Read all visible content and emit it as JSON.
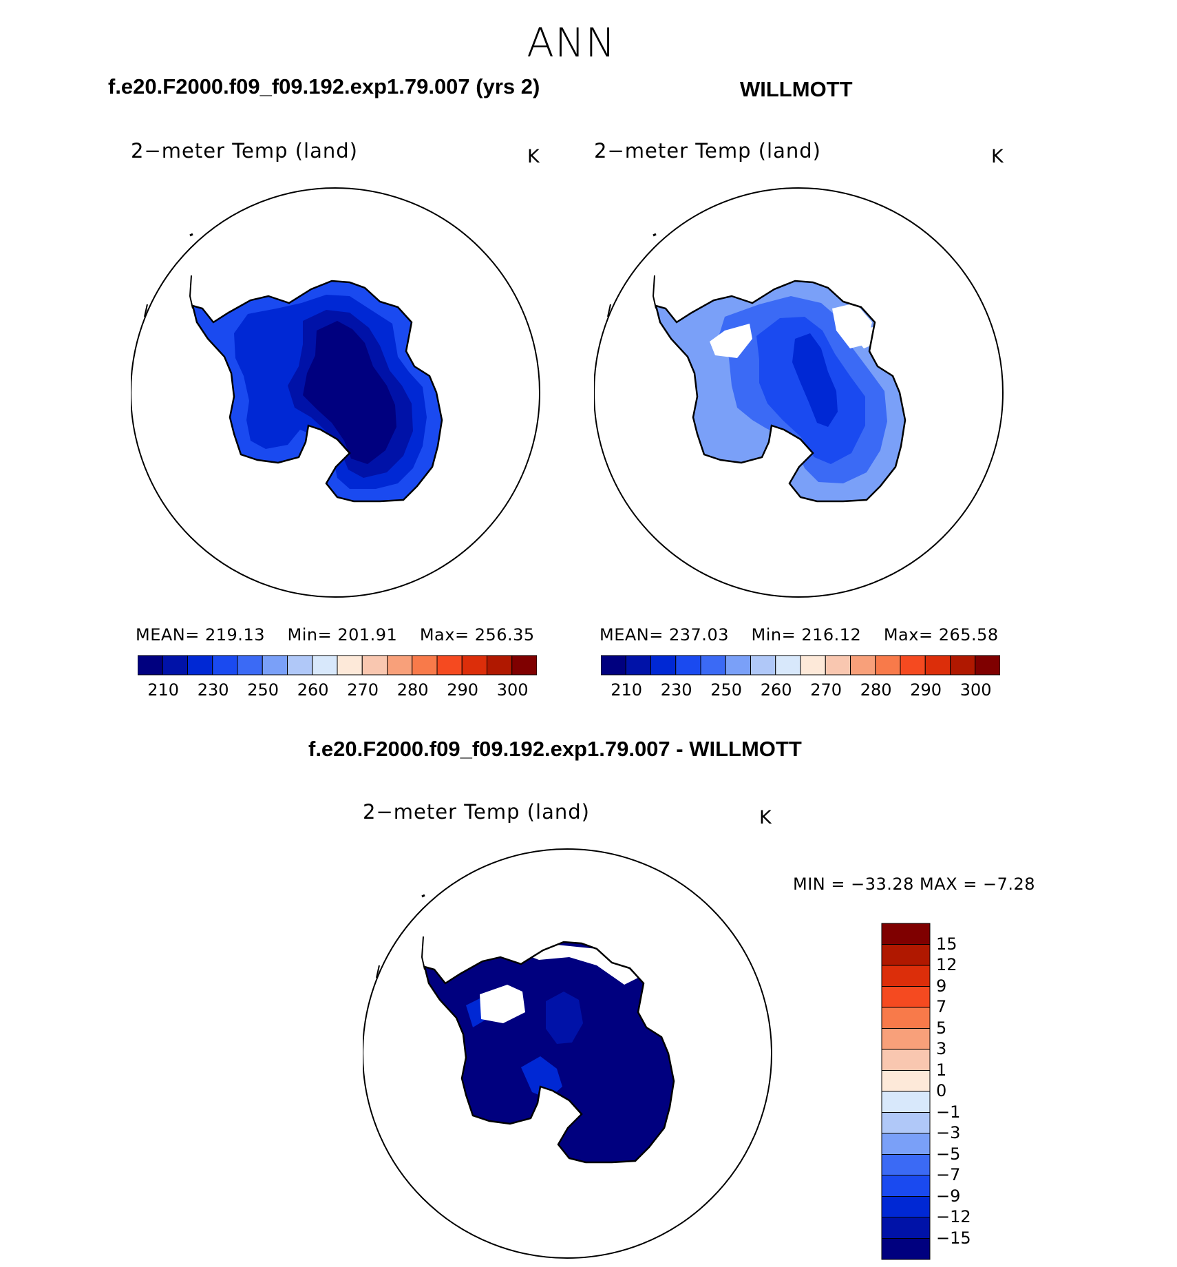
{
  "page": {
    "season": "ANN",
    "top_left_title": "f.e20.F2000.f09_f09.192.exp1.79.007 (yrs 2)",
    "top_right_title": "WILLMOTT",
    "diff_title": "f.e20.F2000.f09_f09.192.exp1.79.007 - WILLMOTT"
  },
  "panels": {
    "model": {
      "variable": "2−meter Temp (land)",
      "units": "K",
      "mean_label": "MEAN=",
      "mean": "219.13",
      "min_label": "Min=",
      "min": "201.91",
      "max_label": "Max=",
      "max": "256.35"
    },
    "obs": {
      "variable": "2−meter Temp (land)",
      "units": "K",
      "mean_label": "MEAN=",
      "mean": "237.03",
      "min_label": "Min=",
      "min": "216.12",
      "max_label": "Max=",
      "max": "265.58"
    },
    "diff": {
      "variable": "2−meter Temp (land)",
      "units": "K",
      "minmax_text": "MIN = −33.28 MAX =  −7.28"
    }
  },
  "colorbar_abs": {
    "colors": [
      "#00007f",
      "#0012a8",
      "#0028d4",
      "#1a4af0",
      "#3b6af5",
      "#7aa0f8",
      "#b0c8f8",
      "#d8e8fb",
      "#fde9d9",
      "#f9c7b0",
      "#f8a07a",
      "#f87a4a",
      "#f54a20",
      "#dc2e0a",
      "#b01800",
      "#7f0000"
    ],
    "tick_labels": [
      "210",
      "230",
      "250",
      "260",
      "270",
      "280",
      "290",
      "300"
    ]
  },
  "colorbar_diff": {
    "colors_top_to_bottom": [
      "#7f0000",
      "#b01800",
      "#dc2e0a",
      "#f54a20",
      "#f87a4a",
      "#f8a07a",
      "#f9c7b0",
      "#fde9d9",
      "#d8e8fb",
      "#b0c8f8",
      "#7aa0f8",
      "#3b6af5",
      "#1a4af0",
      "#0028d4",
      "#0012a8",
      "#00007f"
    ],
    "tick_labels": [
      "15",
      "12",
      "9",
      "7",
      "5",
      "3",
      "1",
      "0",
      "−1",
      "−3",
      "−5",
      "−7",
      "−9",
      "−12",
      "−15"
    ]
  },
  "map_fill_colors": {
    "ocean": "#ffffff",
    "missing": "#ffffff",
    "model_coast": "#1a4af0",
    "model_mid": "#0028d4",
    "model_inner": "#0012a8",
    "model_core": "#00007f",
    "obs_coast": "#7aa0f8",
    "obs_mid": "#3b6af5",
    "obs_inner": "#1a4af0",
    "obs_core": "#0028d4",
    "diff_main": "#00007f",
    "diff_patch": "#0012a8",
    "diff_edge": "#0028d4"
  }
}
